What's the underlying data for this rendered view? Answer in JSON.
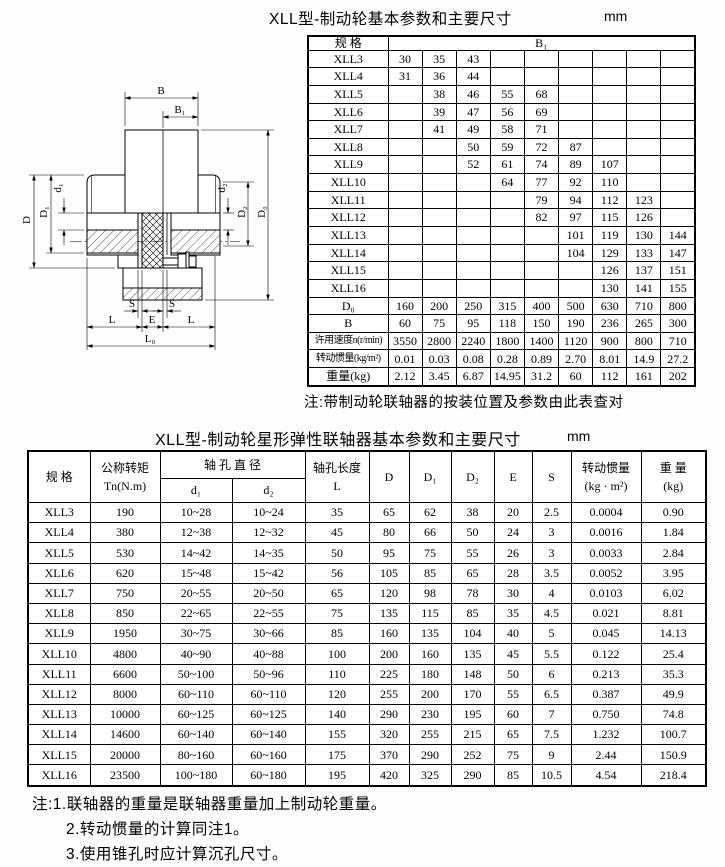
{
  "section1": {
    "title": "XLL型-制动轮基本参数和主要尺寸",
    "unit": "mm",
    "note": "注:带制动轮联轴器的按装位置及参数由此表查对",
    "table": {
      "spec_header": "规  格",
      "span_header": "B₁",
      "rows": [
        [
          "XLL3",
          "30",
          "35",
          "43",
          "",
          "",
          "",
          "",
          "",
          ""
        ],
        [
          "XLL4",
          "31",
          "36",
          "44",
          "",
          "",
          "",
          "",
          "",
          ""
        ],
        [
          "XLL5",
          "",
          "38",
          "46",
          "55",
          "68",
          "",
          "",
          "",
          ""
        ],
        [
          "XLL6",
          "",
          "39",
          "47",
          "56",
          "69",
          "",
          "",
          "",
          ""
        ],
        [
          "XLL7",
          "",
          "41",
          "49",
          "58",
          "71",
          "",
          "",
          "",
          ""
        ],
        [
          "XLL8",
          "",
          "",
          "50",
          "59",
          "72",
          "87",
          "",
          "",
          ""
        ],
        [
          "XLL9",
          "",
          "",
          "52",
          "61",
          "74",
          "89",
          "107",
          "",
          ""
        ],
        [
          "XLL10",
          "",
          "",
          "",
          "64",
          "77",
          "92",
          "110",
          "",
          ""
        ],
        [
          "XLL11",
          "",
          "",
          "",
          "",
          "79",
          "94",
          "112",
          "123",
          ""
        ],
        [
          "XLL12",
          "",
          "",
          "",
          "",
          "82",
          "97",
          "115",
          "126",
          ""
        ],
        [
          "XLL13",
          "",
          "",
          "",
          "",
          "",
          "101",
          "119",
          "130",
          "144"
        ],
        [
          "XLL14",
          "",
          "",
          "",
          "",
          "",
          "104",
          "129",
          "133",
          "147"
        ],
        [
          "XLL15",
          "",
          "",
          "",
          "",
          "",
          "",
          "126",
          "137",
          "151"
        ],
        [
          "XLL16",
          "",
          "",
          "",
          "",
          "",
          "",
          "130",
          "141",
          "155"
        ],
        [
          "D₀",
          "160",
          "200",
          "250",
          "315",
          "400",
          "500",
          "630",
          "710",
          "800"
        ],
        [
          "B",
          "60",
          "75",
          "95",
          "118",
          "150",
          "190",
          "236",
          "265",
          "300"
        ],
        [
          "许用速度n(r/min)",
          "3550",
          "2800",
          "2240",
          "1800",
          "1400",
          "1120",
          "900",
          "800",
          "710"
        ],
        [
          "转动惯量(kg/m²)",
          "0.01",
          "0.03",
          "0.08",
          "0.28",
          "0.89",
          "2.70",
          "8.01",
          "14.9",
          "27.2"
        ],
        [
          "重量(kg)",
          "2.12",
          "3.45",
          "6.87",
          "14.95",
          "31.2",
          "60",
          "112",
          "161",
          "202"
        ]
      ]
    }
  },
  "drawing": {
    "dims": {
      "b": "B",
      "b1": "B₁",
      "D": "D",
      "D1": "D₁",
      "d1": "d₁",
      "d2": "d₂",
      "D2": "D₂",
      "D0": "D₀",
      "s": "S",
      "l": "L",
      "e": "E",
      "l0": "L₀"
    }
  },
  "section2": {
    "title": "XLL型-制动轮星形弹性联轴器基本参数和主要尺寸",
    "unit": "mm",
    "table": {
      "headers": {
        "spec": "规  格",
        "torque_l1": "公称转矩",
        "torque_l2": "Tn(N.m)",
        "bore_dia": "轴 孔 直 径",
        "d1": "d₁",
        "d2": "d₂",
        "bore_len_l1": "轴孔长度",
        "bore_len_l2": "L",
        "D": "D",
        "D1": "D₁",
        "D2": "D₂",
        "E": "E",
        "S": "S",
        "inertia_l1": "转动惯量",
        "inertia_l2": "(kg · m²)",
        "weight_l1": "重 量",
        "weight_l2": "(kg)"
      },
      "rows": [
        [
          "XLL3",
          "190",
          "10~28",
          "10~24",
          "35",
          "65",
          "62",
          "38",
          "20",
          "2.5",
          "0.0004",
          "0.90"
        ],
        [
          "XLL4",
          "380",
          "12~38",
          "12~32",
          "45",
          "80",
          "66",
          "50",
          "24",
          "3",
          "0.0016",
          "1.84"
        ],
        [
          "XLL5",
          "530",
          "14~42",
          "14~35",
          "50",
          "95",
          "75",
          "55",
          "26",
          "3",
          "0.0033",
          "2.84"
        ],
        [
          "XLL6",
          "620",
          "15~48",
          "15~42",
          "56",
          "105",
          "85",
          "65",
          "28",
          "3.5",
          "0.0052",
          "3.95"
        ],
        [
          "XLL7",
          "750",
          "20~55",
          "20~50",
          "65",
          "120",
          "98",
          "78",
          "30",
          "4",
          "0.0103",
          "6.02"
        ],
        [
          "XLL8",
          "850",
          "22~65",
          "22~55",
          "75",
          "135",
          "115",
          "85",
          "35",
          "4.5",
          "0.021",
          "8.81"
        ],
        [
          "XLL9",
          "1950",
          "30~75",
          "30~66",
          "85",
          "160",
          "135",
          "104",
          "40",
          "5",
          "0.045",
          "14.13"
        ],
        [
          "XLL10",
          "4800",
          "40~90",
          "40~88",
          "100",
          "200",
          "160",
          "135",
          "45",
          "5.5",
          "0.122",
          "25.4"
        ],
        [
          "XLL11",
          "6600",
          "50~100",
          "50~96",
          "110",
          "225",
          "180",
          "148",
          "50",
          "6",
          "0.213",
          "35.3"
        ],
        [
          "XLL12",
          "8000",
          "60~110",
          "60~110",
          "120",
          "255",
          "200",
          "170",
          "55",
          "6.5",
          "0.387",
          "49.9"
        ],
        [
          "XLL13",
          "10000",
          "60~125",
          "60~125",
          "140",
          "290",
          "230",
          "195",
          "60",
          "7",
          "0.750",
          "74.8"
        ],
        [
          "XLL14",
          "14600",
          "60~140",
          "60~140",
          "155",
          "320",
          "255",
          "215",
          "65",
          "7.5",
          "1.232",
          "100.7"
        ],
        [
          "XLL15",
          "20000",
          "80~160",
          "60~160",
          "175",
          "370",
          "290",
          "252",
          "75",
          "9",
          "2.44",
          "150.9"
        ],
        [
          "XLL16",
          "23500",
          "100~180",
          "60~180",
          "195",
          "420",
          "325",
          "290",
          "85",
          "10.5",
          "4.54",
          "218.4"
        ]
      ]
    }
  },
  "notes": {
    "line1": "注:1.联轴器的重量是联轴器重量加上制动轮重量。",
    "line2": "2.转动惯量的计算同注1。",
    "line3": "3.使用锥孔时应计算沉孔尺寸。"
  }
}
